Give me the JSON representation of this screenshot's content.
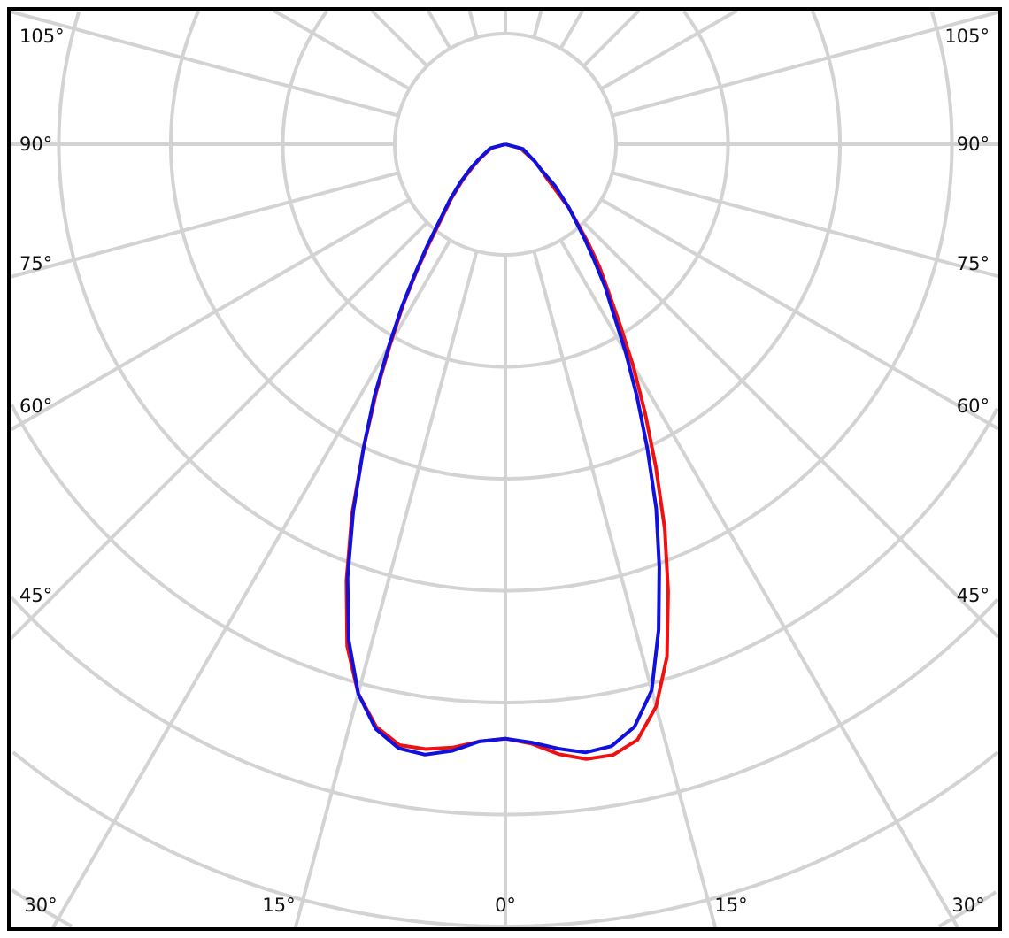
{
  "chart_data": {
    "type": "polar-line",
    "title": "",
    "angle_zero_direction": "down",
    "angle_step_grid_deg": 15,
    "radial_ring_labels_shown": false,
    "grid": true,
    "grid_color": "#d3d3d3",
    "frame_color": "#000000",
    "angle_tick_labels": {
      "left": [
        "105°",
        "90°",
        "75°",
        "60°",
        "45°"
      ],
      "right": [
        "105°",
        "90°",
        "75°",
        "60°",
        "45°"
      ],
      "bottom": [
        "30°",
        "15°",
        "0°",
        "15°",
        "30°"
      ]
    },
    "angles": [
      -90,
      -75,
      -60,
      -55,
      -50,
      -45,
      -40,
      -37.5,
      -35,
      -32.5,
      -30,
      -27.5,
      -25,
      -22.5,
      -20,
      -17.5,
      -15,
      -12.5,
      -10,
      -7.5,
      -5,
      -2.5,
      0,
      2.5,
      5,
      7.5,
      10,
      12.5,
      15,
      17.5,
      20,
      22.5,
      25,
      27.5,
      30,
      32.5,
      35,
      37.5,
      40,
      45,
      50,
      55,
      60,
      75,
      90
    ],
    "series": [
      {
        "color": "#ee1111",
        "values": [
          0,
          13,
          27,
          36,
          50,
          68,
          92,
          112,
          138,
          170,
          205,
          250,
          300,
          358,
          415,
          470,
          508,
          533,
          545,
          545,
          541,
          534,
          531,
          536,
          547,
          554,
          554,
          545,
          520,
          480,
          425,
          372,
          318,
          270,
          228,
          190,
          160,
          138,
          115,
          80,
          50,
          38,
          30,
          14,
          0
        ]
      },
      {
        "color": "#1111dd",
        "values": [
          0,
          14,
          28,
          38,
          52,
          70,
          95,
          115,
          140,
          172,
          208,
          253,
          300,
          355,
          412,
          465,
          508,
          535,
          548,
          550,
          544,
          534,
          531,
          535,
          542,
          548,
          546,
          533,
          505,
          455,
          402,
          352,
          300,
          255,
          215,
          180,
          155,
          130,
          110,
          80,
          58,
          38,
          30,
          16,
          0
        ]
      }
    ]
  }
}
